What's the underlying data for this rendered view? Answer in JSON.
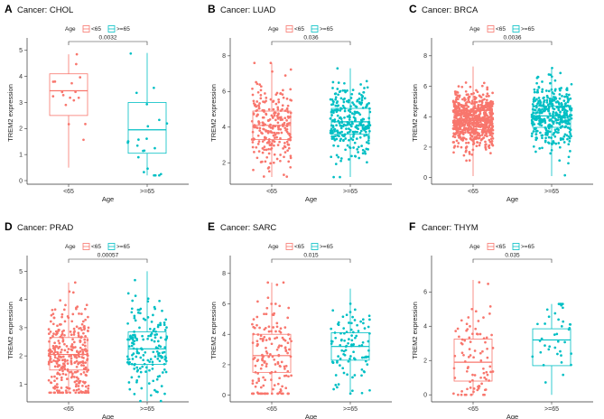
{
  "figure": {
    "ylabel": "TREM2 expression",
    "xlabel": "Age",
    "legend_title": "Age",
    "colors": {
      "young": "#F8766D",
      "old": "#00BFC4"
    }
  },
  "chart_data": [
    {
      "type": "box",
      "panel": "A",
      "title": "Cancer: CHOL",
      "categories": [
        "<65",
        ">=65"
      ],
      "pvalue": "0.0032",
      "ylim": [
        0,
        5.2
      ],
      "yticks": [
        0,
        1,
        2,
        3,
        4,
        5
      ],
      "box_stats": [
        {
          "group": "<65",
          "min": 0.5,
          "q1": 2.5,
          "median": 3.45,
          "q3": 4.1,
          "max": 4.85,
          "n": 17
        },
        {
          "group": ">=65",
          "min": 0.2,
          "q1": 1.05,
          "median": 1.95,
          "q3": 3.0,
          "max": 4.9,
          "n": 23
        }
      ]
    },
    {
      "type": "box",
      "panel": "B",
      "title": "Cancer: LUAD",
      "categories": [
        "<65",
        ">=65"
      ],
      "pvalue": "0.036",
      "ylim": [
        1.0,
        8.6
      ],
      "yticks": [
        2,
        4,
        6,
        8
      ],
      "box_stats": [
        {
          "group": "<65",
          "min": 1.2,
          "q1": 3.3,
          "median": 4.1,
          "q3": 4.9,
          "max": 7.6,
          "n": 260
        },
        {
          "group": ">=65",
          "min": 1.2,
          "q1": 3.6,
          "median": 4.3,
          "q3": 5.05,
          "max": 7.3,
          "n": 270
        }
      ]
    },
    {
      "type": "box",
      "panel": "C",
      "title": "Cancer: BRCA",
      "categories": [
        "<65",
        ">=65"
      ],
      "pvalue": "0.0036",
      "ylim": [
        -0.2,
        8.7
      ],
      "yticks": [
        0,
        2,
        4,
        6,
        8
      ],
      "box_stats": [
        {
          "group": "<65",
          "min": 0.1,
          "q1": 3.15,
          "median": 3.75,
          "q3": 4.4,
          "max": 7.3,
          "n": 700
        },
        {
          "group": ">=65",
          "min": 0.1,
          "q1": 3.3,
          "median": 4.05,
          "q3": 4.7,
          "max": 7.2,
          "n": 380
        }
      ]
    },
    {
      "type": "box",
      "panel": "D",
      "title": "Cancer: PRAD",
      "categories": [
        "<65",
        ">=65"
      ],
      "pvalue": "0.00057",
      "ylim": [
        0.5,
        5.3
      ],
      "yticks": [
        1,
        2,
        3,
        4,
        5
      ],
      "box_stats": [
        {
          "group": "<65",
          "min": 0.7,
          "q1": 1.5,
          "median": 2.05,
          "q3": 2.65,
          "max": 4.6,
          "n": 330
        },
        {
          "group": ">=65",
          "min": 0.4,
          "q1": 1.7,
          "median": 2.25,
          "q3": 2.85,
          "max": 5.0,
          "n": 170
        }
      ]
    },
    {
      "type": "box",
      "panel": "E",
      "title": "Cancer: SARC",
      "categories": [
        "<65",
        ">=65"
      ],
      "pvalue": "0.015",
      "ylim": [
        -0.2,
        8.7
      ],
      "yticks": [
        0,
        2,
        4,
        6,
        8
      ],
      "box_stats": [
        {
          "group": "<65",
          "min": 0.1,
          "q1": 1.5,
          "median": 2.6,
          "q3": 4.0,
          "max": 7.4,
          "n": 160
        },
        {
          "group": ">=65",
          "min": 0.1,
          "q1": 2.3,
          "median": 3.2,
          "q3": 4.1,
          "max": 7.0,
          "n": 100
        }
      ]
    },
    {
      "type": "box",
      "panel": "F",
      "title": "Cancer: THYM",
      "categories": [
        "<65",
        ">=65"
      ],
      "pvalue": "0.035",
      "ylim": [
        -0.2,
        7.7
      ],
      "yticks": [
        0,
        2,
        4,
        6
      ],
      "box_stats": [
        {
          "group": "<65",
          "min": 0.0,
          "q1": 0.8,
          "median": 1.9,
          "q3": 3.25,
          "max": 6.7,
          "n": 90
        },
        {
          "group": ">=65",
          "min": 0.0,
          "q1": 1.7,
          "median": 3.2,
          "q3": 3.85,
          "max": 5.3,
          "n": 40
        }
      ]
    }
  ]
}
